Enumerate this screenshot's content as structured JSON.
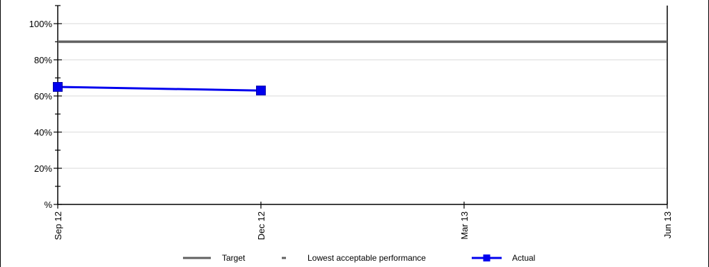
{
  "chart_data": {
    "type": "line",
    "x_categories": [
      "Sep 12",
      "Dec 12",
      "Mar 13",
      "Jun 13"
    ],
    "y_tick_labels": [
      "%",
      "20%",
      "40%",
      "60%",
      "80%",
      "100%"
    ],
    "y_tick_values": [
      0,
      20,
      40,
      60,
      80,
      100
    ],
    "ylim": [
      0,
      110
    ],
    "grid": true,
    "legend_position": "bottom",
    "series": [
      {
        "name": "Target",
        "kind": "reference-line",
        "color": "#606060",
        "value": 90
      },
      {
        "name": "Lowest acceptable performance",
        "kind": "reference-line",
        "color": "#606060",
        "value": null
      },
      {
        "name": "Actual",
        "kind": "line-markers",
        "color": "#0000ee",
        "points": [
          {
            "x": "Sep 12",
            "y": 65
          },
          {
            "x": "Dec 12",
            "y": 63
          }
        ]
      }
    ]
  }
}
